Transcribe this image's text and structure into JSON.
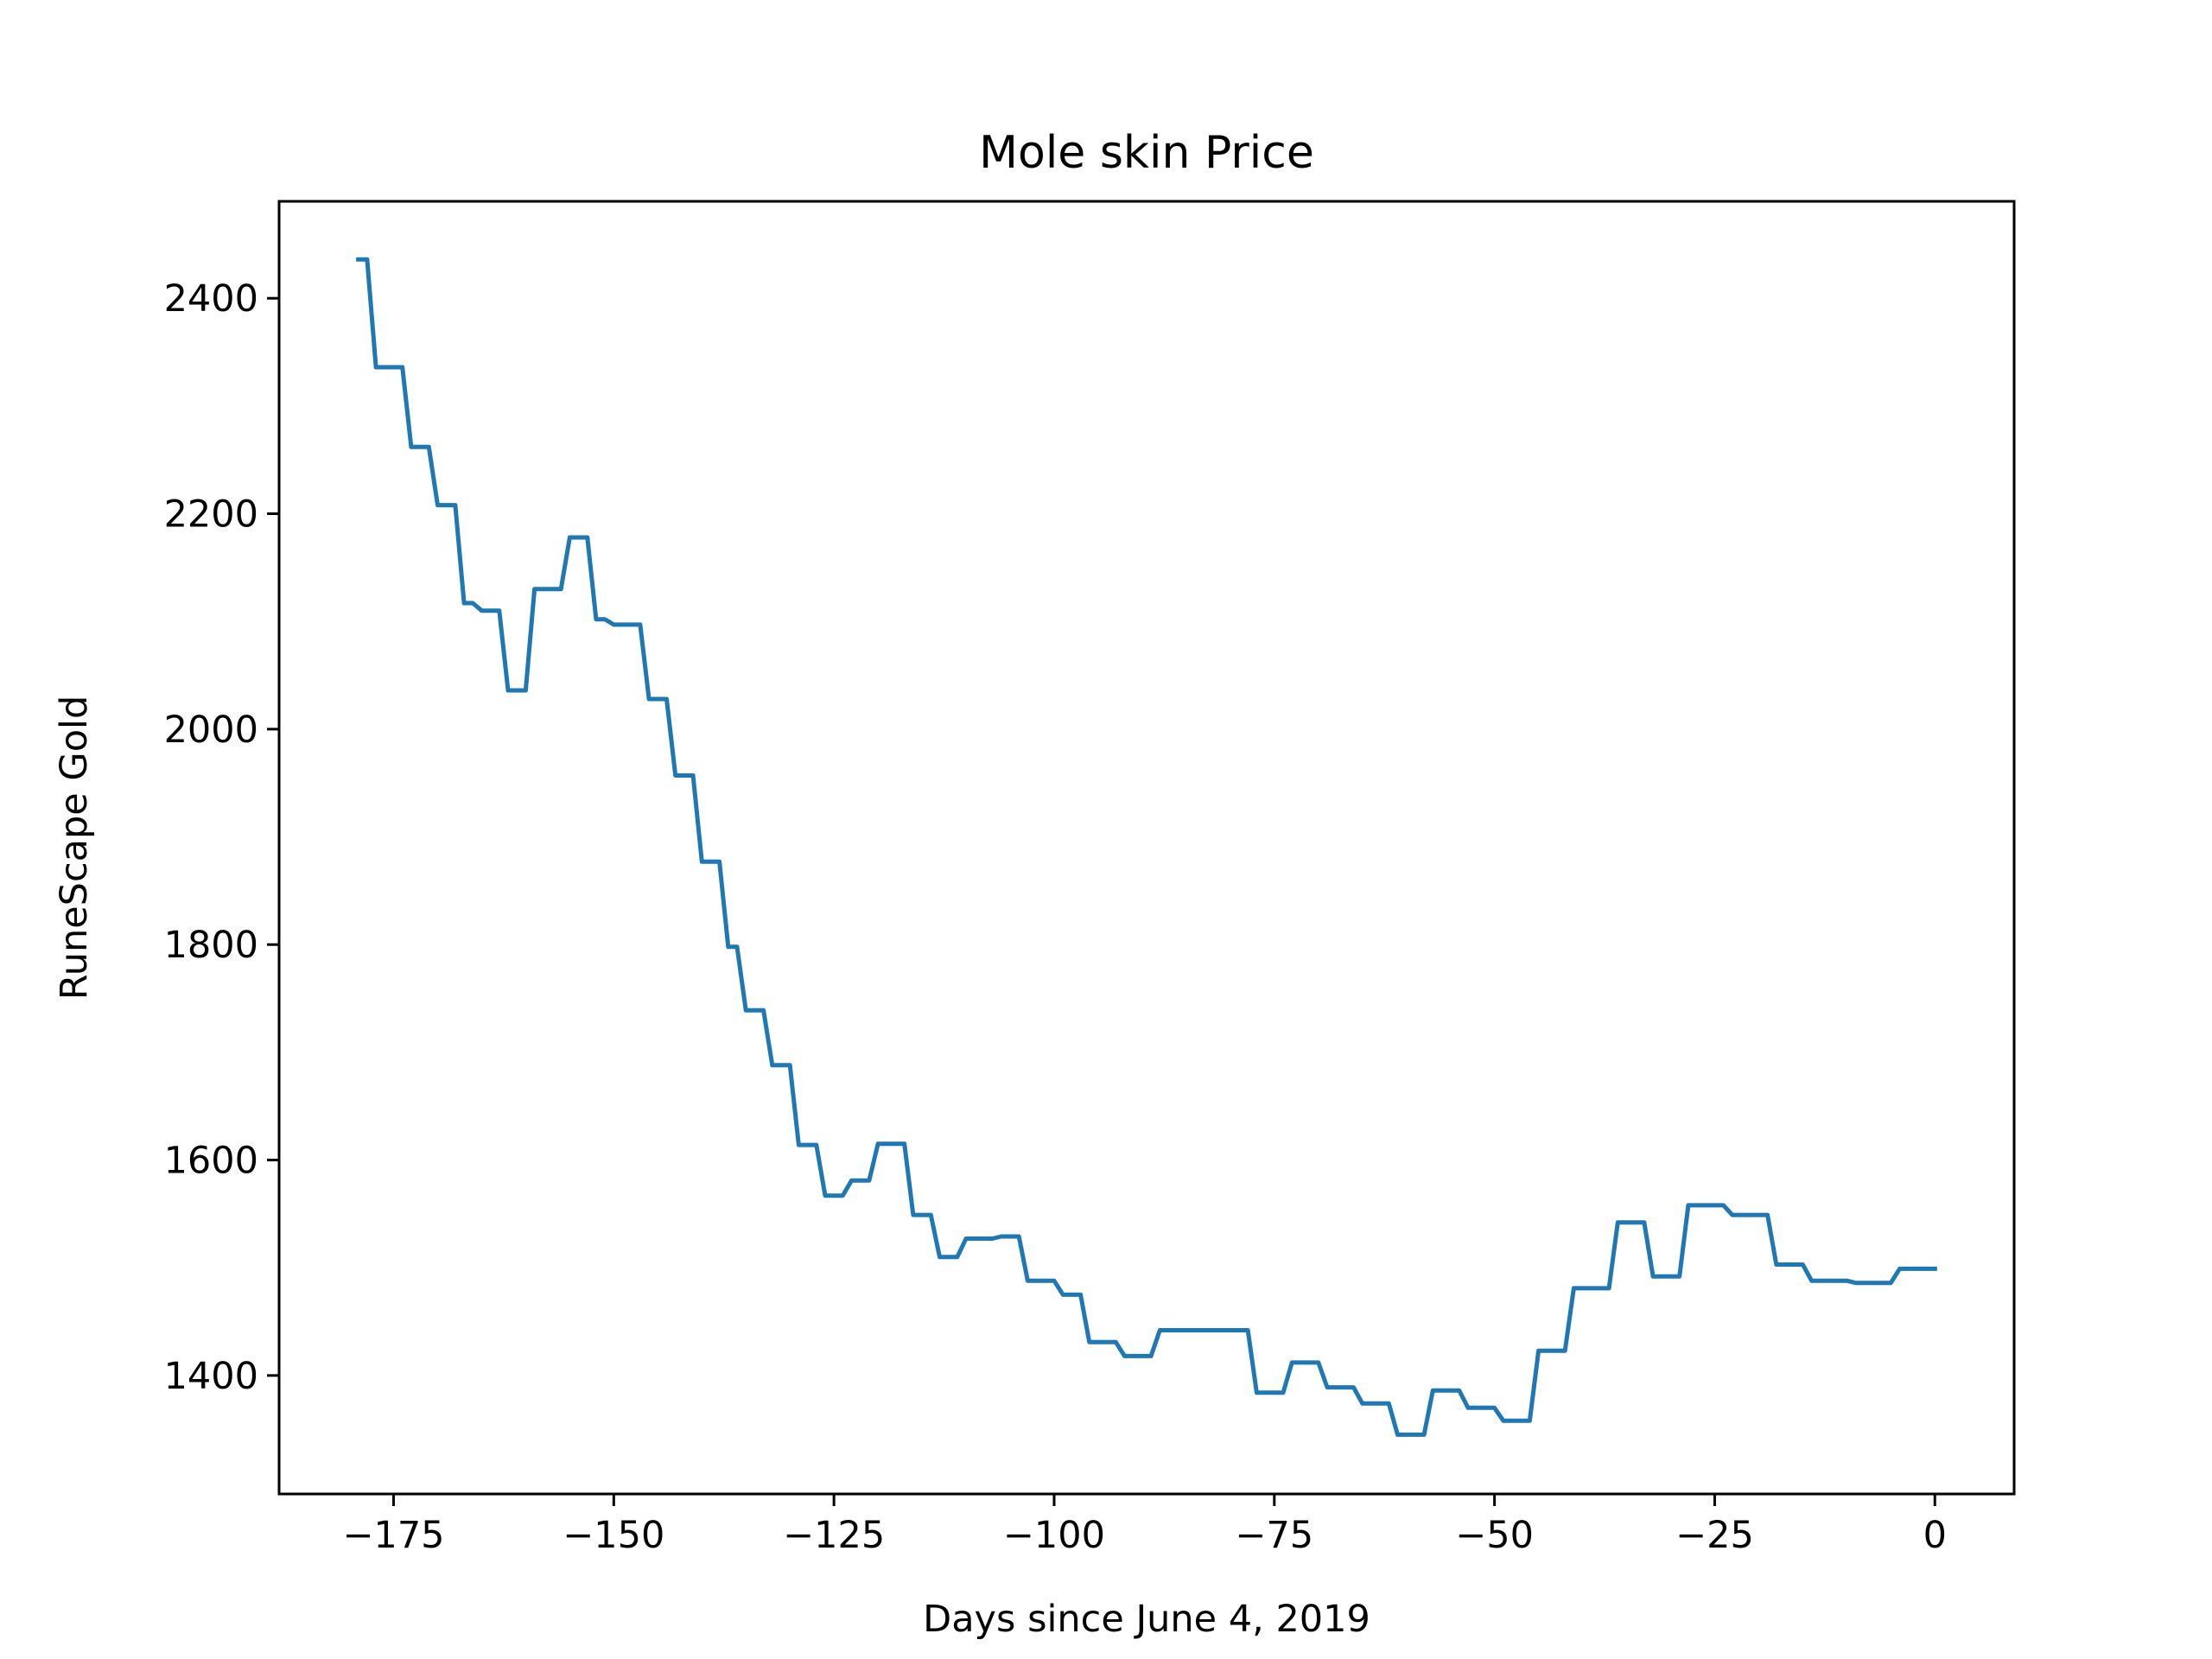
{
  "chart_data": {
    "type": "line",
    "title": "Mole skin Price",
    "xlabel": "Days since June 4, 2019",
    "ylabel": "RuneScape Gold",
    "xlim": [
      -188,
      9
    ],
    "ylim": [
      1290,
      2490
    ],
    "grid": false,
    "x_ticks": [
      {
        "value": -175,
        "label": "−175"
      },
      {
        "value": -150,
        "label": "−150"
      },
      {
        "value": -125,
        "label": "−125"
      },
      {
        "value": -100,
        "label": "−100"
      },
      {
        "value": -75,
        "label": "−75"
      },
      {
        "value": -50,
        "label": "−50"
      },
      {
        "value": -25,
        "label": "−25"
      },
      {
        "value": 0,
        "label": "0"
      }
    ],
    "y_ticks": [
      {
        "value": 1400,
        "label": "1400"
      },
      {
        "value": 1600,
        "label": "1600"
      },
      {
        "value": 1800,
        "label": "1800"
      },
      {
        "value": 2000,
        "label": "2000"
      },
      {
        "value": 2200,
        "label": "2200"
      },
      {
        "value": 2400,
        "label": "2400"
      }
    ],
    "series": [
      {
        "color": "#1f77b4",
        "points": [
          [
            -179,
            2436
          ],
          [
            -178,
            2436
          ],
          [
            -177,
            2336
          ],
          [
            -174,
            2336
          ],
          [
            -173,
            2262
          ],
          [
            -171,
            2262
          ],
          [
            -170,
            2208
          ],
          [
            -168,
            2208
          ],
          [
            -167,
            2117
          ],
          [
            -166,
            2117
          ],
          [
            -165,
            2110
          ],
          [
            -163,
            2110
          ],
          [
            -162,
            2036
          ],
          [
            -160,
            2036
          ],
          [
            -159,
            2130
          ],
          [
            -156,
            2130
          ],
          [
            -155,
            2178
          ],
          [
            -153,
            2178
          ],
          [
            -152,
            2102
          ],
          [
            -151,
            2102
          ],
          [
            -150,
            2097
          ],
          [
            -147,
            2097
          ],
          [
            -146,
            2028
          ],
          [
            -144,
            2028
          ],
          [
            -143,
            1957
          ],
          [
            -141,
            1957
          ],
          [
            -140,
            1877
          ],
          [
            -138,
            1877
          ],
          [
            -137,
            1798
          ],
          [
            -136,
            1798
          ],
          [
            -135,
            1739
          ],
          [
            -133,
            1739
          ],
          [
            -132,
            1688
          ],
          [
            -130,
            1688
          ],
          [
            -129,
            1614
          ],
          [
            -127,
            1614
          ],
          [
            -126,
            1567
          ],
          [
            -124,
            1567
          ],
          [
            -123,
            1581
          ],
          [
            -121,
            1581
          ],
          [
            -120,
            1615
          ],
          [
            -117,
            1615
          ],
          [
            -116,
            1549
          ],
          [
            -114,
            1549
          ],
          [
            -113,
            1510
          ],
          [
            -111,
            1510
          ],
          [
            -110,
            1527
          ],
          [
            -107,
            1527
          ],
          [
            -106,
            1529
          ],
          [
            -104,
            1529
          ],
          [
            -103,
            1488
          ],
          [
            -100,
            1488
          ],
          [
            -99,
            1475
          ],
          [
            -97,
            1475
          ],
          [
            -96,
            1431
          ],
          [
            -93,
            1431
          ],
          [
            -92,
            1418
          ],
          [
            -89,
            1418
          ],
          [
            -88,
            1442
          ],
          [
            -78,
            1442
          ],
          [
            -77,
            1384
          ],
          [
            -74,
            1384
          ],
          [
            -73,
            1412
          ],
          [
            -70,
            1412
          ],
          [
            -69,
            1389
          ],
          [
            -66,
            1389
          ],
          [
            -65,
            1374
          ],
          [
            -62,
            1374
          ],
          [
            -61,
            1345
          ],
          [
            -58,
            1345
          ],
          [
            -57,
            1386
          ],
          [
            -54,
            1386
          ],
          [
            -53,
            1370
          ],
          [
            -50,
            1370
          ],
          [
            -49,
            1358
          ],
          [
            -46,
            1358
          ],
          [
            -45,
            1423
          ],
          [
            -42,
            1423
          ],
          [
            -41,
            1481
          ],
          [
            -37,
            1481
          ],
          [
            -36,
            1542
          ],
          [
            -33,
            1542
          ],
          [
            -32,
            1492
          ],
          [
            -29,
            1492
          ],
          [
            -28,
            1558
          ],
          [
            -24,
            1558
          ],
          [
            -23,
            1549
          ],
          [
            -19,
            1549
          ],
          [
            -18,
            1503
          ],
          [
            -15,
            1503
          ],
          [
            -14,
            1488
          ],
          [
            -10,
            1488
          ],
          [
            -9,
            1486
          ],
          [
            -5,
            1486
          ],
          [
            -4,
            1499
          ],
          [
            0,
            1499
          ]
        ]
      }
    ]
  }
}
